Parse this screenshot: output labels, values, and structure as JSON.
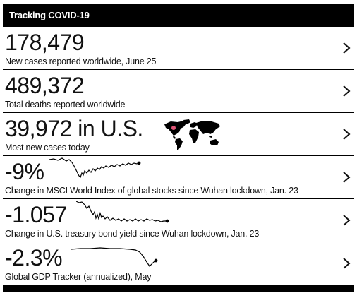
{
  "header": {
    "title": "Tracking COVID-19"
  },
  "rows": [
    {
      "big": "178,479",
      "label": "New cases reported worldwide, June 25"
    },
    {
      "big": "489,372",
      "label": "Total deaths reported worldwide"
    },
    {
      "big": "39,972 in U.S.",
      "label": "Most new cases today"
    },
    {
      "big": "-9%",
      "label": "Change in MSCI World Index of global stocks since Wuhan lockdown, Jan. 23"
    },
    {
      "big": "-1.057",
      "label": "Change in U.S. treasury bond yield since Wuhan lockdown, Jan. 23"
    },
    {
      "big": "-2.3%",
      "label": "Global GDP Tracker (annualized), May"
    }
  ],
  "colors": {
    "bar": "#000000",
    "map_highlight": "#e05577"
  },
  "icons": {
    "row_arrow": "chevron-right-icon",
    "map": "world-map-icon"
  }
}
